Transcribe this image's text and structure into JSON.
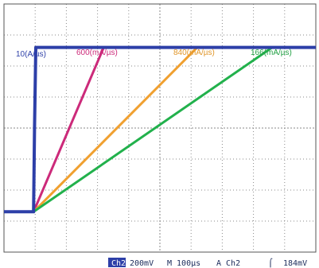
{
  "chart_data": {
    "type": "line",
    "x_unit": "µs",
    "y_unit": "div",
    "xlim": [
      0,
      1000
    ],
    "ylim": [
      -4,
      4
    ],
    "grid": true,
    "series": [
      {
        "name": "10(A/µs)",
        "label": "10(A/µs)",
        "color": "#2d3fa8",
        "x": [
          0,
          95,
          98,
          102,
          1000
        ],
        "y": [
          -2.7,
          -2.7,
          0,
          2.6,
          2.6
        ]
      },
      {
        "name": "600(mA/µs)",
        "label": "600(mA/µs)",
        "color": "#cc2a7a",
        "x": [
          0,
          95,
          320,
          1000
        ],
        "y": [
          -2.7,
          -2.7,
          2.6,
          2.6
        ]
      },
      {
        "name": "840(mA/µs)",
        "label": "840(mA/µs)",
        "color": "#f0a030",
        "x": [
          0,
          95,
          620,
          1000
        ],
        "y": [
          -2.7,
          -2.7,
          2.6,
          2.6
        ]
      },
      {
        "name": "166(mA/µs)",
        "label": "166(mA/µs)",
        "color": "#22b14c",
        "x": [
          0,
          95,
          860,
          1000
        ],
        "y": [
          -2.7,
          -2.7,
          2.6,
          2.6
        ]
      }
    ]
  },
  "status_bar": {
    "channel": "Ch2",
    "volts_per_div": "200mV",
    "time_per_div": "M 100µs",
    "trigger_source": "A  Ch2",
    "trigger_symbol": "⌠",
    "trigger_level": "184mV"
  },
  "colors": {
    "grid": "#8a8a8a",
    "frame": "#555555",
    "badge": "#2d3fa8"
  }
}
